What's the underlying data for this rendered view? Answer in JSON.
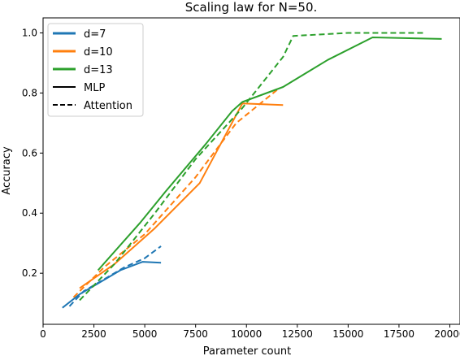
{
  "chart_data": {
    "type": "line",
    "title": "Scaling law for N=50.",
    "xlabel": "Parameter count",
    "ylabel": "Accuracy",
    "xlim": [
      0,
      20500
    ],
    "ylim": [
      0.03,
      1.05
    ],
    "xticks": [
      0,
      2500,
      5000,
      7500,
      10000,
      12500,
      15000,
      17500,
      20000
    ],
    "xtick_labels": [
      "0",
      "2500",
      "5000",
      "7500",
      "10000",
      "12500",
      "15000",
      "17500",
      "20000"
    ],
    "yticks": [
      0.2,
      0.4,
      0.6,
      0.8,
      1.0
    ],
    "ytick_labels": [
      "0.2",
      "0.4",
      "0.6",
      "0.8",
      "1.0"
    ],
    "grid": false,
    "legend_position": "top-left",
    "legend": [
      {
        "label": "d=7",
        "color": "#1f77b4",
        "style": "solid"
      },
      {
        "label": "d=10",
        "color": "#ff7f0e",
        "style": "solid"
      },
      {
        "label": "d=13",
        "color": "#2ca02c",
        "style": "solid"
      },
      {
        "label": "MLP",
        "color": "#000000",
        "style": "solid"
      },
      {
        "label": "Attention",
        "color": "#000000",
        "style": "dashed"
      }
    ],
    "series": [
      {
        "d": "d=7",
        "model": "MLP",
        "color": "#1f77b4",
        "dash": false,
        "x": [
          950,
          1800,
          2800,
          3800,
          4900,
          5800
        ],
        "y": [
          0.085,
          0.13,
          0.17,
          0.21,
          0.238,
          0.235
        ]
      },
      {
        "d": "d=7",
        "model": "Attention",
        "color": "#1f77b4",
        "dash": true,
        "x": [
          1300,
          2000,
          3000,
          4000,
          5000,
          5800
        ],
        "y": [
          0.09,
          0.14,
          0.18,
          0.22,
          0.25,
          0.29
        ]
      },
      {
        "d": "d=10",
        "model": "MLP",
        "color": "#ff7f0e",
        "dash": false,
        "x": [
          1800,
          3500,
          5500,
          7700,
          9800,
          11800
        ],
        "y": [
          0.15,
          0.23,
          0.35,
          0.5,
          0.765,
          0.76
        ]
      },
      {
        "d": "d=10",
        "model": "Attention",
        "color": "#ff7f0e",
        "dash": true,
        "x": [
          1500,
          3000,
          5000,
          7500,
          9500,
          11500
        ],
        "y": [
          0.12,
          0.22,
          0.33,
          0.52,
          0.7,
          0.81
        ]
      },
      {
        "d": "d=13",
        "model": "MLP",
        "color": "#2ca02c",
        "dash": false,
        "x": [
          2700,
          4800,
          6000,
          8000,
          9300,
          9800,
          11800,
          14000,
          16200,
          19600
        ],
        "y": [
          0.21,
          0.37,
          0.47,
          0.63,
          0.74,
          0.77,
          0.82,
          0.91,
          0.985,
          0.98
        ]
      },
      {
        "d": "d=13",
        "model": "Attention",
        "color": "#2ca02c",
        "dash": true,
        "x": [
          1800,
          3500,
          5500,
          7500,
          9800,
          11800,
          12300,
          15000,
          18800
        ],
        "y": [
          0.11,
          0.23,
          0.4,
          0.58,
          0.75,
          0.92,
          0.99,
          1.0,
          1.0
        ]
      }
    ]
  }
}
